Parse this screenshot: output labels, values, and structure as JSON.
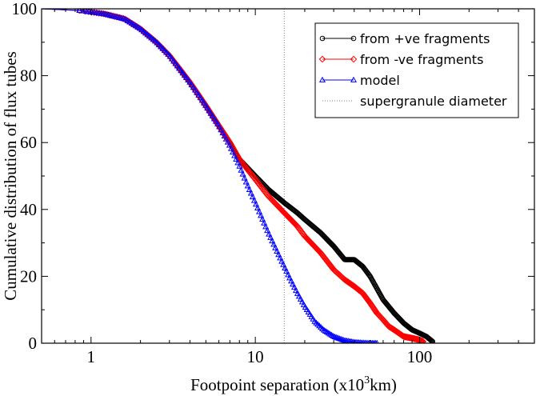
{
  "chart_data": {
    "type": "line",
    "xscale": "log",
    "xlim": [
      0.5,
      500
    ],
    "ylim": [
      0,
      100
    ],
    "grid": false,
    "legend_position": "top-right",
    "xlabel": {
      "main": "Footpoint separation (x10",
      "sup": "3",
      "tail": "km)"
    },
    "ylabel": "Cumulative distribution of flux tubes",
    "x_tick_labels": [
      "1",
      "10",
      "100"
    ],
    "x_tick_values": [
      1,
      10,
      100
    ],
    "y_tick_labels": [
      "0",
      "20",
      "40",
      "60",
      "80",
      "100"
    ],
    "y_tick_values": [
      0,
      20,
      40,
      60,
      80,
      100
    ],
    "vlines": [
      {
        "x": 15,
        "name": "supergranule diameter",
        "style": "dotted",
        "color": "#808080"
      }
    ],
    "series": [
      {
        "name": "from +ve fragments",
        "color": "#000000",
        "marker": "circle",
        "x": [
          0.5,
          0.85,
          1.2,
          1.6,
          2.0,
          2.5,
          3.0,
          4.0,
          5.0,
          6.0,
          7.0,
          8.0,
          10.0,
          12.0,
          15.0,
          18.0,
          20.0,
          25.0,
          30.0,
          35.0,
          40.0,
          45.0,
          50.0,
          60.0,
          70.0,
          80.0,
          90.0,
          100.0,
          110.0,
          120.0
        ],
        "y": [
          100,
          99.5,
          98.5,
          97,
          94,
          90,
          86,
          78,
          71,
          65,
          60,
          55,
          50,
          46,
          42,
          39,
          37,
          33,
          29,
          25,
          25,
          23,
          20,
          13,
          9,
          6,
          4,
          3,
          2,
          0.5
        ]
      },
      {
        "name": "from -ve fragments",
        "color": "#ff0000",
        "marker": "diamond",
        "x": [
          0.5,
          0.85,
          1.2,
          1.6,
          2.0,
          2.5,
          3.0,
          4.0,
          5.0,
          6.0,
          7.0,
          8.0,
          10.0,
          12.0,
          15.0,
          18.0,
          20.0,
          25.0,
          30.0,
          35.0,
          40.0,
          45.0,
          50.0,
          55.0,
          60.0,
          65.0,
          70.0,
          80.0,
          90.0,
          100.0,
          105.0
        ],
        "y": [
          100,
          99.5,
          98.5,
          97,
          94,
          90,
          86,
          78,
          71,
          65,
          60,
          55,
          49,
          44,
          39,
          35,
          32,
          27,
          22,
          19,
          17,
          15,
          12,
          9,
          7,
          5,
          4,
          2,
          1.5,
          1,
          0.5
        ]
      },
      {
        "name": "model",
        "color": "#0000ff",
        "marker": "triangle",
        "x": [
          0.5,
          0.85,
          1.2,
          1.6,
          2.0,
          2.5,
          3.0,
          4.0,
          5.0,
          6.0,
          7.0,
          8.0,
          9.0,
          10.0,
          12.0,
          14.0,
          16.0,
          18.0,
          20.0,
          23.0,
          26.0,
          30.0,
          35.0,
          40.0,
          45.0,
          50.0,
          55.0
        ],
        "y": [
          100,
          99.5,
          98.5,
          97,
          94,
          90,
          86,
          78,
          71,
          65,
          59,
          53,
          47,
          42,
          33,
          26,
          20,
          15,
          11,
          6.5,
          4,
          2,
          0.8,
          0.3,
          0.1,
          0,
          0
        ]
      }
    ]
  }
}
